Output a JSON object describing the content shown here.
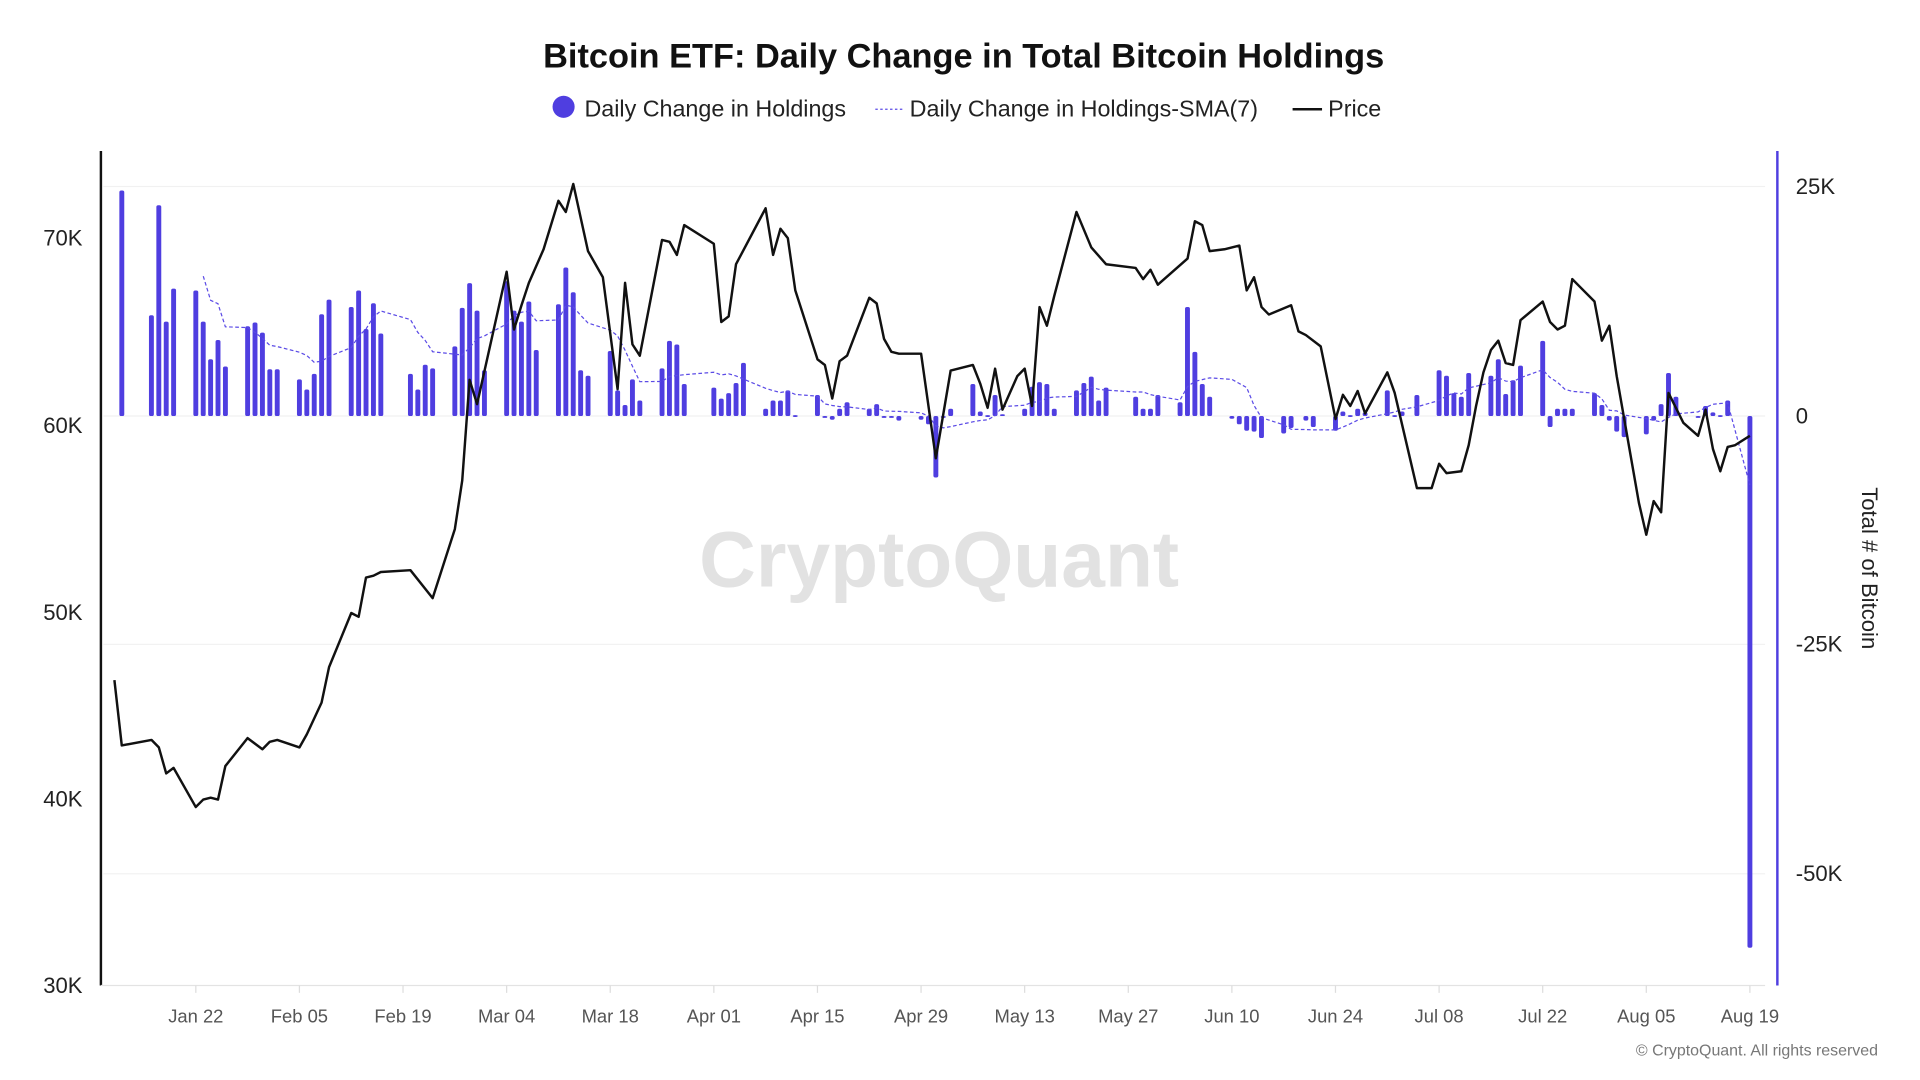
{
  "chart_data": {
    "type": "bar+line",
    "title": "Bitcoin ETF: Daily Change in Total Bitcoin Holdings",
    "legend": [
      "Daily Change in Holdings",
      "Daily Change in Holdings-SMA(7)",
      "Price"
    ],
    "legend_placement": "top-center",
    "y_left": {
      "ticks": [
        "30K",
        "40K",
        "50K",
        "60K",
        "70K"
      ],
      "range": [
        30000,
        74500
      ]
    },
    "y_right": {
      "label": "Total # of Bitcoin",
      "ticks": [
        "25K",
        "0",
        "-25K",
        "-50K"
      ],
      "range": [
        -62000,
        29000
      ]
    },
    "x_ticks": [
      "Jan 22",
      "Feb 05",
      "Feb 19",
      "Mar 04",
      "Mar 18",
      "Apr 01",
      "Apr 15",
      "Apr 29",
      "May 13",
      "May 27",
      "Jun 10",
      "Jun 24",
      "Jul 08",
      "Jul 22",
      "Aug 05",
      "Aug 19"
    ],
    "grid": true,
    "colors": {
      "bars": "#4f3ee0",
      "sma": "#5b4be6",
      "price": "#111111",
      "right_axis": "#4f3ee0"
    },
    "year": 2024,
    "holdings_change": [
      [
        "2024-01-12",
        24600
      ],
      [
        "2024-01-16",
        11000
      ],
      [
        "2024-01-17",
        23000
      ],
      [
        "2024-01-18",
        10300
      ],
      [
        "2024-01-19",
        13900
      ],
      [
        "2024-01-22",
        13700
      ],
      [
        "2024-01-23",
        10300
      ],
      [
        "2024-01-24",
        6200
      ],
      [
        "2024-01-25",
        8300
      ],
      [
        "2024-01-26",
        5400
      ],
      [
        "2024-01-29",
        9800
      ],
      [
        "2024-01-30",
        10200
      ],
      [
        "2024-01-31",
        9100
      ],
      [
        "2024-02-01",
        5100
      ],
      [
        "2024-02-02",
        5100
      ],
      [
        "2024-02-05",
        4000
      ],
      [
        "2024-02-06",
        2900
      ],
      [
        "2024-02-07",
        4600
      ],
      [
        "2024-02-08",
        11100
      ],
      [
        "2024-02-09",
        12700
      ],
      [
        "2024-02-12",
        11900
      ],
      [
        "2024-02-13",
        13700
      ],
      [
        "2024-02-14",
        9500
      ],
      [
        "2024-02-15",
        12300
      ],
      [
        "2024-02-16",
        9000
      ],
      [
        "2024-02-20",
        4600
      ],
      [
        "2024-02-21",
        2900
      ],
      [
        "2024-02-22",
        5600
      ],
      [
        "2024-02-23",
        5200
      ],
      [
        "2024-02-26",
        7600
      ],
      [
        "2024-02-27",
        11800
      ],
      [
        "2024-02-28",
        14500
      ],
      [
        "2024-02-29",
        11500
      ],
      [
        "2024-03-01",
        5000
      ],
      [
        "2024-03-04",
        14700
      ],
      [
        "2024-03-05",
        11500
      ],
      [
        "2024-03-06",
        10300
      ],
      [
        "2024-03-07",
        12500
      ],
      [
        "2024-03-08",
        7200
      ],
      [
        "2024-03-11",
        12200
      ],
      [
        "2024-03-12",
        16200
      ],
      [
        "2024-03-13",
        13500
      ],
      [
        "2024-03-14",
        5000
      ],
      [
        "2024-03-15",
        4400
      ],
      [
        "2024-03-18",
        7100
      ],
      [
        "2024-03-19",
        2800
      ],
      [
        "2024-03-20",
        1200
      ],
      [
        "2024-03-21",
        4000
      ],
      [
        "2024-03-22",
        1700
      ],
      [
        "2024-03-25",
        5200
      ],
      [
        "2024-03-26",
        8200
      ],
      [
        "2024-03-27",
        7800
      ],
      [
        "2024-03-28",
        3500
      ],
      [
        "2024-04-01",
        3100
      ],
      [
        "2024-04-02",
        1900
      ],
      [
        "2024-04-03",
        2500
      ],
      [
        "2024-04-04",
        3600
      ],
      [
        "2024-04-05",
        5800
      ],
      [
        "2024-04-08",
        800
      ],
      [
        "2024-04-09",
        1700
      ],
      [
        "2024-04-10",
        1700
      ],
      [
        "2024-04-11",
        2800
      ],
      [
        "2024-04-12",
        100
      ],
      [
        "2024-04-15",
        2300
      ],
      [
        "2024-04-16",
        -100
      ],
      [
        "2024-04-17",
        -400
      ],
      [
        "2024-04-18",
        800
      ],
      [
        "2024-04-19",
        1500
      ],
      [
        "2024-04-22",
        800
      ],
      [
        "2024-04-23",
        1300
      ],
      [
        "2024-04-24",
        -100
      ],
      [
        "2024-04-25",
        -200
      ],
      [
        "2024-04-26",
        -500
      ],
      [
        "2024-04-29",
        -400
      ],
      [
        "2024-04-30",
        -900
      ],
      [
        "2024-05-01",
        -6700
      ],
      [
        "2024-05-02",
        -200
      ],
      [
        "2024-05-03",
        800
      ],
      [
        "2024-05-06",
        3500
      ],
      [
        "2024-05-07",
        500
      ],
      [
        "2024-05-08",
        100
      ],
      [
        "2024-05-09",
        2300
      ],
      [
        "2024-05-10",
        200
      ],
      [
        "2024-05-13",
        800
      ],
      [
        "2024-05-14",
        3200
      ],
      [
        "2024-05-15",
        3700
      ],
      [
        "2024-05-16",
        3500
      ],
      [
        "2024-05-17",
        800
      ],
      [
        "2024-05-20",
        2800
      ],
      [
        "2024-05-21",
        3600
      ],
      [
        "2024-05-22",
        4300
      ],
      [
        "2024-05-23",
        1700
      ],
      [
        "2024-05-24",
        3100
      ],
      [
        "2024-05-28",
        2100
      ],
      [
        "2024-05-29",
        800
      ],
      [
        "2024-05-30",
        800
      ],
      [
        "2024-05-31",
        2300
      ],
      [
        "2024-06-03",
        1500
      ],
      [
        "2024-06-04",
        11900
      ],
      [
        "2024-06-05",
        7000
      ],
      [
        "2024-06-06",
        3500
      ],
      [
        "2024-06-07",
        2100
      ],
      [
        "2024-06-10",
        -300
      ],
      [
        "2024-06-11",
        -900
      ],
      [
        "2024-06-12",
        -1600
      ],
      [
        "2024-06-13",
        -1700
      ],
      [
        "2024-06-14",
        -2400
      ],
      [
        "2024-06-17",
        -1900
      ],
      [
        "2024-06-18",
        -1300
      ],
      [
        "2024-06-20",
        -500
      ],
      [
        "2024-06-21",
        -1200
      ],
      [
        "2024-06-24",
        -1600
      ],
      [
        "2024-06-25",
        500
      ],
      [
        "2024-06-26",
        100
      ],
      [
        "2024-06-27",
        800
      ],
      [
        "2024-06-28",
        400
      ],
      [
        "2024-07-01",
        2800
      ],
      [
        "2024-07-02",
        100
      ],
      [
        "2024-07-03",
        500
      ],
      [
        "2024-07-05",
        2300
      ],
      [
        "2024-07-08",
        5000
      ],
      [
        "2024-07-09",
        4400
      ],
      [
        "2024-07-10",
        2500
      ],
      [
        "2024-07-11",
        2100
      ],
      [
        "2024-07-12",
        4700
      ],
      [
        "2024-07-15",
        4400
      ],
      [
        "2024-07-16",
        6200
      ],
      [
        "2024-07-17",
        2400
      ],
      [
        "2024-07-18",
        3900
      ],
      [
        "2024-07-19",
        5500
      ],
      [
        "2024-07-22",
        8200
      ],
      [
        "2024-07-23",
        -1200
      ],
      [
        "2024-07-24",
        800
      ],
      [
        "2024-07-25",
        800
      ],
      [
        "2024-07-26",
        800
      ],
      [
        "2024-07-29",
        2500
      ],
      [
        "2024-07-30",
        1200
      ],
      [
        "2024-07-31",
        -500
      ],
      [
        "2024-08-01",
        -1700
      ],
      [
        "2024-08-02",
        -2300
      ],
      [
        "2024-08-05",
        -2000
      ],
      [
        "2024-08-06",
        -500
      ],
      [
        "2024-08-07",
        1300
      ],
      [
        "2024-08-08",
        4700
      ],
      [
        "2024-08-09",
        2100
      ],
      [
        "2024-08-12",
        -100
      ],
      [
        "2024-08-13",
        1100
      ],
      [
        "2024-08-14",
        400
      ],
      [
        "2024-08-15",
        100
      ],
      [
        "2024-08-16",
        1700
      ],
      [
        "2024-08-19",
        -58000
      ]
    ],
    "price": [
      [
        "2024-01-11",
        46300
      ],
      [
        "2024-01-12",
        42800
      ],
      [
        "2024-01-16",
        43100
      ],
      [
        "2024-01-17",
        42700
      ],
      [
        "2024-01-18",
        41300
      ],
      [
        "2024-01-19",
        41600
      ],
      [
        "2024-01-22",
        39500
      ],
      [
        "2024-01-23",
        39900
      ],
      [
        "2024-01-24",
        40000
      ],
      [
        "2024-01-25",
        39900
      ],
      [
        "2024-01-26",
        41700
      ],
      [
        "2024-01-29",
        43200
      ],
      [
        "2024-01-31",
        42600
      ],
      [
        "2024-02-01",
        43000
      ],
      [
        "2024-02-02",
        43100
      ],
      [
        "2024-02-05",
        42700
      ],
      [
        "2024-02-06",
        43400
      ],
      [
        "2024-02-08",
        45100
      ],
      [
        "2024-02-09",
        47000
      ],
      [
        "2024-02-12",
        49900
      ],
      [
        "2024-02-13",
        49700
      ],
      [
        "2024-02-14",
        51800
      ],
      [
        "2024-02-15",
        51900
      ],
      [
        "2024-02-16",
        52100
      ],
      [
        "2024-02-20",
        52200
      ],
      [
        "2024-02-23",
        50700
      ],
      [
        "2024-02-26",
        54400
      ],
      [
        "2024-02-27",
        57000
      ],
      [
        "2024-02-28",
        62400
      ],
      [
        "2024-02-29",
        61100
      ],
      [
        "2024-03-04",
        68200
      ],
      [
        "2024-03-05",
        65100
      ],
      [
        "2024-03-06",
        66400
      ],
      [
        "2024-03-07",
        67600
      ],
      [
        "2024-03-09",
        69400
      ],
      [
        "2024-03-11",
        72000
      ],
      [
        "2024-03-12",
        71400
      ],
      [
        "2024-03-13",
        72900
      ],
      [
        "2024-03-15",
        69300
      ],
      [
        "2024-03-17",
        67900
      ],
      [
        "2024-03-19",
        61900
      ],
      [
        "2024-03-20",
        67600
      ],
      [
        "2024-03-21",
        64300
      ],
      [
        "2024-03-22",
        63700
      ],
      [
        "2024-03-25",
        69900
      ],
      [
        "2024-03-26",
        69800
      ],
      [
        "2024-03-27",
        69100
      ],
      [
        "2024-03-28",
        70700
      ],
      [
        "2024-04-01",
        69700
      ],
      [
        "2024-04-02",
        65500
      ],
      [
        "2024-04-03",
        65800
      ],
      [
        "2024-04-04",
        68600
      ],
      [
        "2024-04-08",
        71600
      ],
      [
        "2024-04-09",
        69100
      ],
      [
        "2024-04-10",
        70500
      ],
      [
        "2024-04-11",
        70000
      ],
      [
        "2024-04-12",
        67200
      ],
      [
        "2024-04-15",
        63500
      ],
      [
        "2024-04-16",
        63200
      ],
      [
        "2024-04-17",
        61400
      ],
      [
        "2024-04-18",
        63400
      ],
      [
        "2024-04-19",
        63700
      ],
      [
        "2024-04-22",
        66800
      ],
      [
        "2024-04-23",
        66500
      ],
      [
        "2024-04-24",
        64600
      ],
      [
        "2024-04-25",
        63900
      ],
      [
        "2024-04-26",
        63800
      ],
      [
        "2024-04-29",
        63800
      ],
      [
        "2024-05-01",
        58200
      ],
      [
        "2024-05-03",
        62900
      ],
      [
        "2024-05-06",
        63200
      ],
      [
        "2024-05-07",
        62200
      ],
      [
        "2024-05-08",
        60900
      ],
      [
        "2024-05-09",
        63000
      ],
      [
        "2024-05-10",
        60800
      ],
      [
        "2024-05-11",
        61700
      ],
      [
        "2024-05-12",
        62600
      ],
      [
        "2024-05-13",
        63000
      ],
      [
        "2024-05-14",
        61000
      ],
      [
        "2024-05-15",
        66300
      ],
      [
        "2024-05-16",
        65300
      ],
      [
        "2024-05-17",
        66900
      ],
      [
        "2024-05-20",
        71400
      ],
      [
        "2024-05-22",
        69500
      ],
      [
        "2024-05-24",
        68600
      ],
      [
        "2024-05-28",
        68400
      ],
      [
        "2024-05-29",
        67800
      ],
      [
        "2024-05-30",
        68300
      ],
      [
        "2024-05-31",
        67500
      ],
      [
        "2024-06-04",
        68900
      ],
      [
        "2024-06-05",
        70900
      ],
      [
        "2024-06-06",
        70700
      ],
      [
        "2024-06-07",
        69300
      ],
      [
        "2024-06-09",
        69400
      ],
      [
        "2024-06-11",
        69600
      ],
      [
        "2024-06-12",
        67200
      ],
      [
        "2024-06-13",
        67900
      ],
      [
        "2024-06-14",
        66300
      ],
      [
        "2024-06-15",
        65900
      ],
      [
        "2024-06-18",
        66400
      ],
      [
        "2024-06-19",
        65000
      ],
      [
        "2024-06-20",
        64800
      ],
      [
        "2024-06-22",
        64200
      ],
      [
        "2024-06-24",
        60300
      ],
      [
        "2024-06-25",
        61600
      ],
      [
        "2024-06-26",
        61000
      ],
      [
        "2024-06-27",
        61800
      ],
      [
        "2024-06-28",
        60600
      ],
      [
        "2024-07-01",
        62800
      ],
      [
        "2024-07-02",
        61700
      ],
      [
        "2024-07-05",
        56600
      ],
      [
        "2024-07-07",
        56600
      ],
      [
        "2024-07-08",
        57900
      ],
      [
        "2024-07-09",
        57400
      ],
      [
        "2024-07-11",
        57500
      ],
      [
        "2024-07-12",
        58900
      ],
      [
        "2024-07-13",
        61000
      ],
      [
        "2024-07-14",
        62800
      ],
      [
        "2024-07-15",
        64000
      ],
      [
        "2024-07-16",
        64500
      ],
      [
        "2024-07-17",
        63300
      ],
      [
        "2024-07-18",
        63200
      ],
      [
        "2024-07-19",
        65600
      ],
      [
        "2024-07-22",
        66600
      ],
      [
        "2024-07-23",
        65500
      ],
      [
        "2024-07-24",
        65100
      ],
      [
        "2024-07-25",
        65300
      ],
      [
        "2024-07-26",
        67800
      ],
      [
        "2024-07-27",
        67400
      ],
      [
        "2024-07-29",
        66600
      ],
      [
        "2024-07-30",
        64500
      ],
      [
        "2024-07-31",
        65300
      ],
      [
        "2024-08-01",
        62600
      ],
      [
        "2024-08-04",
        55800
      ],
      [
        "2024-08-05",
        54100
      ],
      [
        "2024-08-06",
        55900
      ],
      [
        "2024-08-07",
        55300
      ],
      [
        "2024-08-08",
        61700
      ],
      [
        "2024-08-10",
        60100
      ],
      [
        "2024-08-12",
        59400
      ],
      [
        "2024-08-13",
        60800
      ],
      [
        "2024-08-14",
        58700
      ],
      [
        "2024-08-15",
        57500
      ],
      [
        "2024-08-16",
        58800
      ],
      [
        "2024-08-17",
        58900
      ],
      [
        "2024-08-19",
        59400
      ]
    ],
    "watermark": "CryptoQuant",
    "copyright": "© CryptoQuant. All rights reserved"
  }
}
